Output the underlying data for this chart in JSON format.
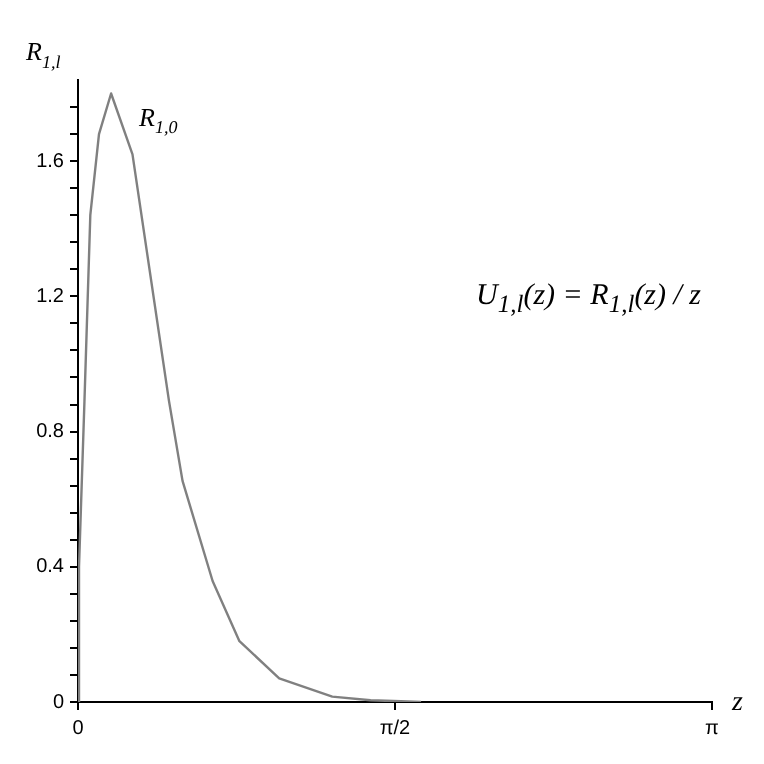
{
  "chart_data": {
    "type": "line",
    "xlabel": "z",
    "ylabel": "R$_{1,l}$",
    "annotations": [
      "U$_{1,l}$(z) = R$_{1,l}$(z) / z"
    ],
    "series": [
      {
        "name": "R$_{1,0}$",
        "color": "#808080",
        "x": [
          0,
          0.005,
          0.032,
          0.061,
          0.104,
          0.164,
          0.27,
          0.451,
          0.518,
          0.667,
          0.8,
          0.997,
          1.26,
          1.45,
          1.6,
          1.7
        ],
        "values": [
          0,
          0.4,
          0.89,
          1.44,
          1.68,
          1.8,
          1.62,
          0.89,
          0.654,
          0.358,
          0.18,
          0.07,
          0.016,
          0.005,
          0.002,
          0
        ]
      }
    ],
    "xlim": [
      0,
      3.1416
    ],
    "xticks": [
      0,
      {
        "value": 1.5708,
        "label": "π/2"
      },
      {
        "value": 3.1416,
        "label": "π"
      }
    ],
    "ylim": [
      0,
      1.84
    ],
    "yticks": [
      0,
      {
        "value": 0.08,
        "label": null
      },
      {
        "value": 0.16,
        "label": null
      },
      {
        "value": 0.24,
        "label": null
      },
      {
        "value": 0.32,
        "label": null
      },
      0.4,
      {
        "value": 0.48,
        "label": null
      },
      {
        "value": 0.56,
        "label": null
      },
      {
        "value": 0.64,
        "label": null
      },
      {
        "value": 0.72,
        "label": null
      },
      0.8,
      {
        "value": 0.88,
        "label": null
      },
      {
        "value": 0.96,
        "label": null
      },
      {
        "value": 1.04,
        "label": null
      },
      {
        "value": 1.12,
        "label": null
      },
      1.2,
      {
        "value": 1.28,
        "label": null
      },
      {
        "value": 1.36,
        "label": null
      },
      {
        "value": 1.44,
        "label": null
      },
      {
        "value": 1.52,
        "label": null
      },
      1.6,
      {
        "value": 1.68,
        "label": null
      },
      {
        "value": 1.76,
        "label": null
      }
    ],
    "grid": false,
    "legend": false,
    "marker": "none",
    "line_style": "solid"
  }
}
